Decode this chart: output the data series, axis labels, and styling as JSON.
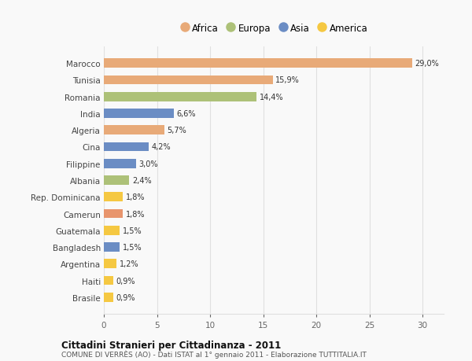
{
  "countries": [
    "Brasile",
    "Haiti",
    "Argentina",
    "Bangladesh",
    "Guatemala",
    "Camerun",
    "Rep. Dominicana",
    "Albania",
    "Filippine",
    "Cina",
    "Algeria",
    "India",
    "Romania",
    "Tunisia",
    "Marocco"
  ],
  "values": [
    0.9,
    0.9,
    1.2,
    1.5,
    1.5,
    1.8,
    1.8,
    2.4,
    3.0,
    4.2,
    5.7,
    6.6,
    14.4,
    15.9,
    29.0
  ],
  "colors": [
    "#f5c842",
    "#f5c842",
    "#f5c842",
    "#6b8dc4",
    "#f5c842",
    "#e8956d",
    "#f5c842",
    "#adc178",
    "#6b8dc4",
    "#6b8dc4",
    "#e8aa78",
    "#6b8dc4",
    "#adc178",
    "#e8aa78",
    "#e8aa78"
  ],
  "legend": [
    {
      "label": "Africa",
      "color": "#e8aa78"
    },
    {
      "label": "Europa",
      "color": "#adc178"
    },
    {
      "label": "Asia",
      "color": "#6b8dc4"
    },
    {
      "label": "America",
      "color": "#f5c842"
    }
  ],
  "title": "Cittadini Stranieri per Cittadinanza - 2011",
  "subtitle": "COMUNE DI VERRÈS (AO) - Dati ISTAT al 1° gennaio 2011 - Elaborazione TUTTITALIA.IT",
  "xlim": [
    0,
    32
  ],
  "xticks": [
    0,
    5,
    10,
    15,
    20,
    25,
    30
  ],
  "bg_color": "#f9f9f9",
  "grid_color": "#e0e0e0"
}
